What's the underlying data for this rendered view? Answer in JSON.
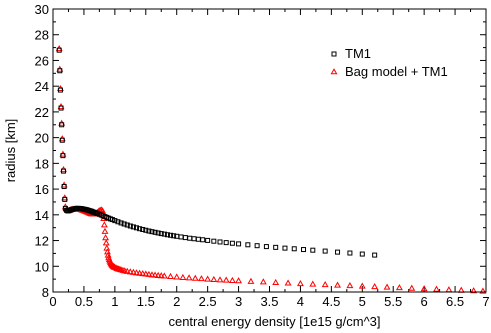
{
  "chart_data": {
    "type": "scatter",
    "xlabel": "central energy density   [1e15 g/cm^3]",
    "ylabel": "radius   [km]",
    "xlim": [
      0,
      7
    ],
    "ylim": [
      8,
      30
    ],
    "xticks": [
      0,
      0.5,
      1,
      1.5,
      2,
      2.5,
      3,
      3.5,
      4,
      4.5,
      5,
      5.5,
      6,
      6.5,
      7
    ],
    "xtick_labels": [
      "0",
      "0.5",
      "1",
      "1.5",
      "2",
      "2.5",
      "3",
      "3.5",
      "4",
      "4.5",
      "5",
      "5.5",
      "6",
      "6.5",
      "7"
    ],
    "yticks": [
      8,
      10,
      12,
      14,
      16,
      18,
      20,
      22,
      24,
      26,
      28,
      30
    ],
    "ytick_labels": [
      "8",
      "10",
      "12",
      "14",
      "16",
      "18",
      "20",
      "22",
      "24",
      "26",
      "28",
      "30"
    ],
    "grid": false,
    "legend_position": "top-right",
    "series": [
      {
        "name": "TM1",
        "marker": "square",
        "color": "#000000",
        "x": [
          0.1,
          0.11,
          0.12,
          0.13,
          0.14,
          0.15,
          0.16,
          0.17,
          0.18,
          0.19,
          0.2,
          0.22,
          0.24,
          0.26,
          0.28,
          0.3,
          0.32,
          0.34,
          0.36,
          0.38,
          0.4,
          0.42,
          0.44,
          0.46,
          0.48,
          0.5,
          0.52,
          0.54,
          0.56,
          0.58,
          0.6,
          0.62,
          0.64,
          0.66,
          0.68,
          0.7,
          0.72,
          0.75,
          0.78,
          0.81,
          0.84,
          0.87,
          0.9,
          0.93,
          0.96,
          1.0,
          1.05,
          1.1,
          1.15,
          1.2,
          1.25,
          1.3,
          1.35,
          1.4,
          1.45,
          1.5,
          1.55,
          1.6,
          1.65,
          1.7,
          1.75,
          1.8,
          1.85,
          1.9,
          1.95,
          2.0,
          2.07,
          2.14,
          2.21,
          2.28,
          2.35,
          2.42,
          2.5,
          2.6,
          2.7,
          2.8,
          2.9,
          3.0,
          3.15,
          3.3,
          3.45,
          3.6,
          3.75,
          3.9,
          4.05,
          4.2,
          4.4,
          4.6,
          4.8,
          5.0,
          5.2
        ],
        "y": [
          26.8,
          25.2,
          23.7,
          22.3,
          21.0,
          19.8,
          18.6,
          17.4,
          16.2,
          15.2,
          14.5,
          14.35,
          14.3,
          14.32,
          14.36,
          14.4,
          14.43,
          14.46,
          14.48,
          14.49,
          14.5,
          14.5,
          14.49,
          14.48,
          14.46,
          14.44,
          14.42,
          14.4,
          14.37,
          14.34,
          14.31,
          14.28,
          14.24,
          14.2,
          14.17,
          14.13,
          14.1,
          14.04,
          13.98,
          13.92,
          13.86,
          13.8,
          13.74,
          13.68,
          13.63,
          13.55,
          13.46,
          13.37,
          13.29,
          13.21,
          13.13,
          13.06,
          12.99,
          12.92,
          12.86,
          12.8,
          12.74,
          12.69,
          12.64,
          12.59,
          12.54,
          12.5,
          12.45,
          12.41,
          12.37,
          12.33,
          12.28,
          12.23,
          12.18,
          12.14,
          12.1,
          12.06,
          12.01,
          11.95,
          11.89,
          11.84,
          11.79,
          11.74,
          11.67,
          11.6,
          11.53,
          11.47,
          11.41,
          11.36,
          11.3,
          11.25,
          11.18,
          11.1,
          11.03,
          10.95,
          10.87
        ]
      },
      {
        "name": "Bag model + TM1",
        "marker": "triangle",
        "color": "#ff0000",
        "x": [
          0.1,
          0.11,
          0.12,
          0.13,
          0.14,
          0.15,
          0.16,
          0.17,
          0.18,
          0.19,
          0.2,
          0.22,
          0.24,
          0.26,
          0.28,
          0.3,
          0.32,
          0.34,
          0.36,
          0.38,
          0.4,
          0.42,
          0.44,
          0.46,
          0.48,
          0.5,
          0.52,
          0.54,
          0.56,
          0.58,
          0.6,
          0.62,
          0.64,
          0.66,
          0.68,
          0.7,
          0.72,
          0.74,
          0.76,
          0.78,
          0.8,
          0.81,
          0.82,
          0.83,
          0.84,
          0.85,
          0.86,
          0.87,
          0.88,
          0.89,
          0.9,
          0.91,
          0.92,
          0.93,
          0.94,
          0.95,
          0.96,
          0.97,
          0.98,
          0.99,
          1.0,
          1.02,
          1.04,
          1.06,
          1.08,
          1.1,
          1.13,
          1.16,
          1.2,
          1.25,
          1.3,
          1.35,
          1.4,
          1.45,
          1.5,
          1.55,
          1.6,
          1.65,
          1.7,
          1.75,
          1.8,
          1.9,
          2.0,
          2.1,
          2.2,
          2.3,
          2.4,
          2.5,
          2.6,
          2.7,
          2.8,
          2.9,
          3.0,
          3.2,
          3.4,
          3.6,
          3.8,
          4.0,
          4.2,
          4.4,
          4.6,
          4.8,
          5.0,
          5.2,
          5.4,
          5.6,
          5.8,
          6.0,
          6.2,
          6.4,
          6.6,
          6.8,
          6.95
        ],
        "y": [
          26.9,
          25.3,
          23.8,
          22.4,
          21.1,
          19.9,
          18.7,
          17.5,
          16.3,
          15.3,
          14.6,
          14.4,
          14.33,
          14.34,
          14.37,
          14.4,
          14.42,
          14.44,
          14.45,
          14.45,
          14.44,
          14.42,
          14.4,
          14.37,
          14.34,
          14.3,
          14.26,
          14.22,
          14.18,
          14.14,
          14.1,
          14.07,
          14.05,
          14.05,
          14.08,
          14.12,
          14.18,
          14.26,
          14.33,
          14.37,
          14.3,
          14.1,
          13.7,
          13.2,
          12.7,
          12.2,
          11.8,
          11.4,
          11.1,
          10.85,
          10.65,
          10.5,
          10.38,
          10.27,
          10.18,
          10.11,
          10.05,
          10.0,
          9.96,
          9.93,
          9.9,
          9.85,
          9.8,
          9.77,
          9.74,
          9.71,
          9.67,
          9.63,
          9.59,
          9.55,
          9.51,
          9.47,
          9.44,
          9.41,
          9.38,
          9.35,
          9.32,
          9.3,
          9.27,
          9.25,
          9.23,
          9.19,
          9.15,
          9.11,
          9.08,
          9.05,
          9.02,
          8.99,
          8.96,
          8.93,
          8.91,
          8.88,
          8.86,
          8.81,
          8.77,
          8.72,
          8.68,
          8.64,
          8.6,
          8.56,
          8.52,
          8.48,
          8.44,
          8.4,
          8.36,
          8.32,
          8.28,
          8.24,
          8.2,
          8.16,
          8.12,
          8.08,
          8.05
        ]
      }
    ]
  }
}
